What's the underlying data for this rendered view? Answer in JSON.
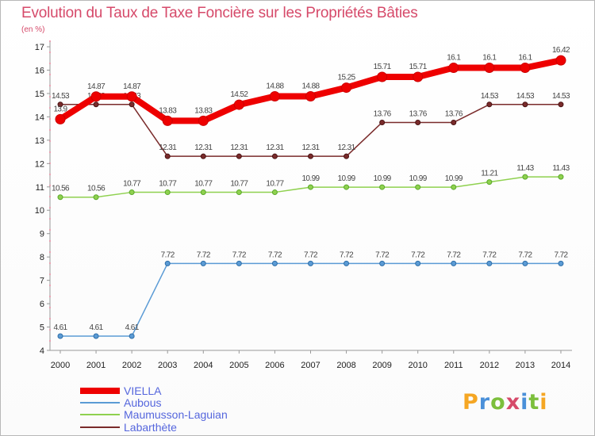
{
  "header": {
    "title": "Evolution du Taux de Taxe Foncière sur les Propriétés Bâties",
    "subtitle": "(en %)"
  },
  "logo": {
    "letters": [
      "P",
      "r",
      "o",
      "x",
      "i",
      "t",
      "i"
    ],
    "colors": [
      "#f5a623",
      "#4a90d9",
      "#7cbf3c",
      "#d64a6a",
      "#4a90d9",
      "#7cbf3c",
      "#f5a623"
    ]
  },
  "chart_data": {
    "type": "line",
    "title": "Evolution du Taux de Taxe Foncière sur les Propriétés Bâties",
    "ylabel": "(en %)",
    "x": [
      "2000",
      "2001",
      "2002",
      "2003",
      "2004",
      "2005",
      "2006",
      "2007",
      "2008",
      "2009",
      "2010",
      "2011",
      "2012",
      "2013",
      "2014"
    ],
    "ylim": [
      4,
      17
    ],
    "yticks": [
      4,
      5,
      6,
      7,
      8,
      9,
      10,
      11,
      12,
      13,
      14,
      15,
      16,
      17
    ],
    "grid": false,
    "legend_position": "bottom-left",
    "series": [
      {
        "name": "VIELLA",
        "color": "#ee0000",
        "values": [
          13.9,
          14.87,
          14.87,
          13.83,
          13.83,
          14.52,
          14.88,
          14.88,
          15.25,
          15.71,
          15.71,
          16.1,
          16.1,
          16.1,
          16.42
        ],
        "labels": [
          "13.9",
          "14.87",
          "14.87",
          "13.83",
          "13.83",
          "14.52",
          "14.88",
          "14.88",
          "15.25",
          "15.71",
          "15.71",
          "16.1",
          "16.1",
          "16.1",
          "16.42"
        ]
      },
      {
        "name": "Aubous",
        "color": "#5b9bd5",
        "values": [
          4.61,
          4.61,
          4.61,
          7.72,
          7.72,
          7.72,
          7.72,
          7.72,
          7.72,
          7.72,
          7.72,
          7.72,
          7.72,
          7.72,
          7.72
        ],
        "labels": [
          "4.61",
          "4.61",
          "4.61",
          "7.72",
          "7.72",
          "7.72",
          "7.72",
          "7.72",
          "7.72",
          "7.72",
          "7.72",
          "7.72",
          "7.72",
          "7.72",
          "7.72"
        ]
      },
      {
        "name": "Maumusson-Laguian",
        "color": "#8fd14f",
        "values": [
          10.56,
          10.56,
          10.77,
          10.77,
          10.77,
          10.77,
          10.77,
          10.99,
          10.99,
          10.99,
          10.99,
          10.99,
          11.21,
          11.43,
          11.43
        ],
        "labels": [
          "10.56",
          "10.56",
          "10.77",
          "10.77",
          "10.77",
          "10.77",
          "10.77",
          "10.99",
          "10.99",
          "10.99",
          "10.99",
          "10.99",
          "11.21",
          "11.43",
          "11.43"
        ]
      },
      {
        "name": "Labarthète",
        "color": "#7a2b2b",
        "values": [
          14.53,
          14.53,
          14.53,
          12.31,
          12.31,
          12.31,
          12.31,
          12.31,
          12.31,
          13.76,
          13.76,
          13.76,
          14.53,
          14.53,
          14.53
        ],
        "labels": [
          "14.53",
          "14.53",
          "14.53",
          "12.31",
          "12.31",
          "12.31",
          "12.31",
          "12.31",
          "12.31",
          "13.76",
          "13.76",
          "13.76",
          "14.53",
          "14.53",
          "14.53"
        ]
      }
    ]
  }
}
